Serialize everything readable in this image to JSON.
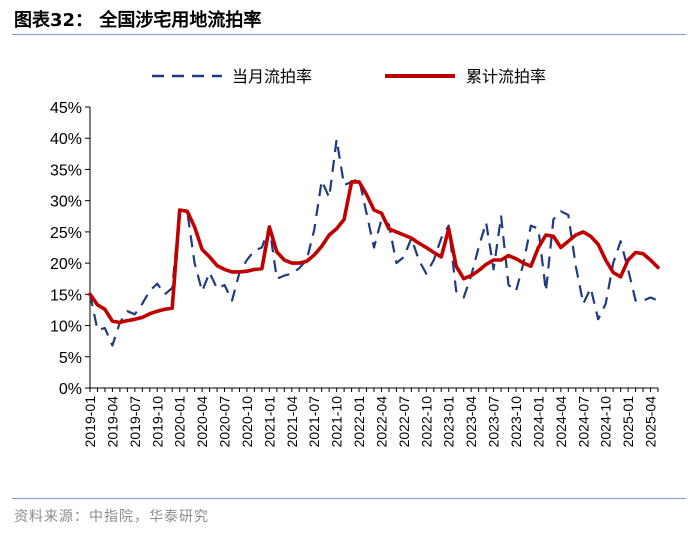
{
  "header": {
    "title": "图表32：  全国涉宅用地流拍率"
  },
  "footer": {
    "source": "资料来源：中指院，华泰研究"
  },
  "colors": {
    "monthly": "#1f3b80",
    "cumulative": "#c00000",
    "rule": "#7f9cc6",
    "axis": "#000000"
  },
  "chart_data": {
    "type": "line",
    "title": "全国涉宅用地流拍率",
    "xlabel": "",
    "ylabel": "",
    "ylim": [
      0,
      45
    ],
    "y_ticks": [
      "0%",
      "5%",
      "10%",
      "15%",
      "20%",
      "25%",
      "30%",
      "35%",
      "40%",
      "45%"
    ],
    "x_tick_labels": [
      "2019-01",
      "2019-04",
      "2019-07",
      "2019-10",
      "2020-01",
      "2020-04",
      "2020-07",
      "2020-10",
      "2021-01",
      "2021-04",
      "2021-07",
      "2021-10",
      "2022-01",
      "2022-04",
      "2022-07",
      "2022-10",
      "2023-01",
      "2023-04",
      "2023-07",
      "2023-10",
      "2024-01",
      "2024-04",
      "2024-07",
      "2024-10",
      "2025-01",
      "2025-04"
    ],
    "grid": false,
    "legend_position": "top",
    "categories": [
      "2019-01",
      "2019-02",
      "2019-03",
      "2019-04",
      "2019-05",
      "2019-06",
      "2019-07",
      "2019-08",
      "2019-09",
      "2019-10",
      "2019-11",
      "2019-12",
      "2020-01",
      "2020-02",
      "2020-03",
      "2020-04",
      "2020-05",
      "2020-06",
      "2020-07",
      "2020-08",
      "2020-09",
      "2020-10",
      "2020-11",
      "2020-12",
      "2021-01",
      "2021-02",
      "2021-03",
      "2021-04",
      "2021-05",
      "2021-06",
      "2021-07",
      "2021-08",
      "2021-09",
      "2021-10",
      "2021-11",
      "2021-12",
      "2022-01",
      "2022-02",
      "2022-03",
      "2022-04",
      "2022-05",
      "2022-06",
      "2022-07",
      "2022-08",
      "2022-09",
      "2022-10",
      "2022-11",
      "2022-12",
      "2023-01",
      "2023-02",
      "2023-03",
      "2023-04",
      "2023-05",
      "2023-06",
      "2023-07",
      "2023-08",
      "2023-09",
      "2023-10",
      "2023-11",
      "2023-12",
      "2024-01",
      "2024-02",
      "2024-03",
      "2024-04",
      "2024-05",
      "2024-06",
      "2024-07",
      "2024-08",
      "2024-09",
      "2024-10",
      "2024-11",
      "2024-12",
      "2025-01",
      "2025-02",
      "2025-03",
      "2025-04",
      "2025-05"
    ],
    "series": [
      {
        "name": "当月流拍率",
        "style": "dashed",
        "values": [
          15.0,
          9.3,
          9.6,
          6.8,
          10.5,
          12.3,
          11.8,
          13.5,
          15.6,
          16.7,
          15.0,
          16.0,
          28.5,
          28.3,
          20.0,
          15.5,
          18.5,
          15.9,
          16.5,
          14.0,
          18.5,
          20.5,
          22.0,
          22.5,
          25.8,
          17.5,
          18.0,
          18.3,
          19.2,
          20.5,
          25.3,
          33.2,
          30.5,
          39.8,
          32.5,
          33.0,
          33.5,
          28.0,
          22.5,
          27.0,
          26.2,
          20.0,
          21.0,
          24.0,
          20.5,
          18.3,
          20.5,
          24.0,
          26.0,
          15.5,
          14.5,
          18.0,
          22.5,
          26.5,
          19.0,
          27.5,
          16.5,
          15.5,
          20.0,
          26.0,
          25.5,
          15.5,
          27.0,
          28.3,
          27.7,
          19.5,
          13.5,
          16.0,
          11.0,
          13.5,
          20.0,
          23.5,
          19.0,
          14.0,
          14.0,
          14.5,
          14.0
        ]
      },
      {
        "name": "累计流拍率",
        "style": "solid",
        "values": [
          15.0,
          13.3,
          12.6,
          10.7,
          10.5,
          10.8,
          11.0,
          11.3,
          11.9,
          12.3,
          12.6,
          12.8,
          28.5,
          28.3,
          25.8,
          22.2,
          21.0,
          19.6,
          19.0,
          18.6,
          18.6,
          18.7,
          19.0,
          19.1,
          25.8,
          21.8,
          20.5,
          20.0,
          20.0,
          20.3,
          21.3,
          22.7,
          24.5,
          25.5,
          27.0,
          33.0,
          33.0,
          31.0,
          28.5,
          28.0,
          25.5,
          25.0,
          24.5,
          24.0,
          23.2,
          22.5,
          21.7,
          21.0,
          25.5,
          19.5,
          17.5,
          18.0,
          18.8,
          19.8,
          20.5,
          20.5,
          21.2,
          20.7,
          20.0,
          19.5,
          22.5,
          24.5,
          24.3,
          22.5,
          23.5,
          24.5,
          25.0,
          24.3,
          23.0,
          20.5,
          18.5,
          17.8,
          20.5,
          21.7,
          21.5,
          20.5,
          19.3
        ]
      }
    ]
  }
}
